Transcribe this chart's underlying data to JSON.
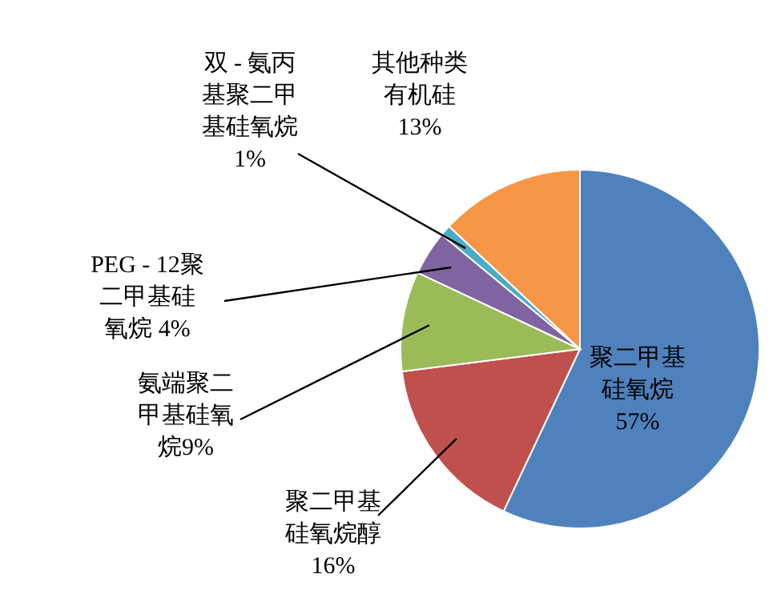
{
  "chart_data": {
    "type": "pie",
    "categories": [
      "聚二甲基硅氧烷",
      "聚二甲基硅氧烷醇",
      "氨端聚二甲基硅氧烷",
      "PEG - 12聚二甲基硅氧烷",
      "双 - 氨丙基聚二甲基硅氧烷",
      "其他种类有机硅"
    ],
    "values": [
      57,
      16,
      9,
      4,
      1,
      13
    ],
    "value_labels": [
      "57%",
      "16%",
      "9%",
      "4%",
      "1%",
      "13%"
    ],
    "colors": [
      "#4f81bd",
      "#c0504d",
      "#9bbb59",
      "#8064a2",
      "#4bacc6",
      "#f79646"
    ]
  }
}
